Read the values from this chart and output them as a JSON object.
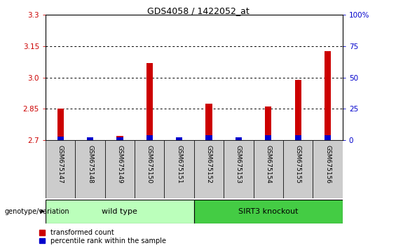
{
  "title": "GDS4058 / 1422052_at",
  "samples": [
    "GSM675147",
    "GSM675148",
    "GSM675149",
    "GSM675150",
    "GSM675151",
    "GSM675152",
    "GSM675153",
    "GSM675154",
    "GSM675155",
    "GSM675156"
  ],
  "red_values": [
    2.85,
    2.7,
    2.72,
    3.07,
    2.7,
    2.875,
    2.7,
    2.86,
    2.99,
    3.125
  ],
  "blue_percentile": [
    3,
    2,
    2,
    4,
    2,
    4,
    2,
    4,
    4,
    4
  ],
  "ylim_left": [
    2.7,
    3.3
  ],
  "yticks_left": [
    2.7,
    2.85,
    3.0,
    3.15,
    3.3
  ],
  "yticks_right": [
    0,
    25,
    50,
    75,
    100
  ],
  "ylim_right": [
    0,
    100
  ],
  "red_color": "#cc0000",
  "blue_color": "#0000cc",
  "bg_color": "#ffffff",
  "wild_type_color": "#bbffbb",
  "knockout_color": "#44cc44",
  "wild_type_label": "wild type",
  "knockout_label": "SIRT3 knockout",
  "legend_red": "transformed count",
  "legend_blue": "percentile rank within the sample",
  "genotype_label": "genotype/variation",
  "n_wild": 5,
  "n_knockout": 5,
  "base": 2.7,
  "sample_bg_color": "#cccccc"
}
